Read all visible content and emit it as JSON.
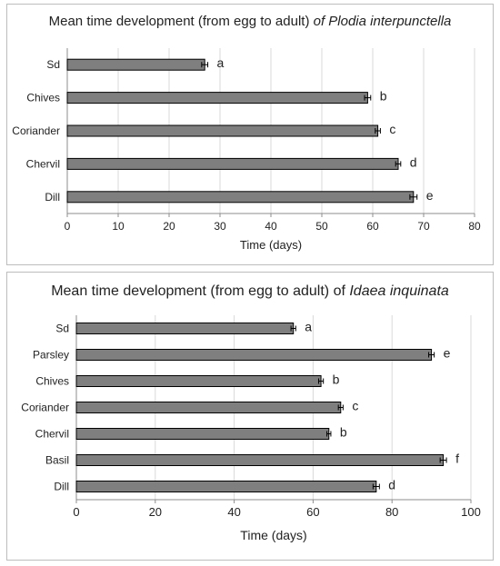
{
  "chart_data": [
    {
      "type": "bar",
      "orientation": "horizontal",
      "title_prefix": "Mean time development  (from egg to adult) ",
      "title_species": "of Plodia interpunctella",
      "categories": [
        "Sd",
        "Chives",
        "Coriander",
        "Chervil",
        "Dill"
      ],
      "values": [
        27,
        59,
        61,
        65,
        68
      ],
      "error": [
        0.6,
        0.6,
        0.5,
        0.5,
        0.7
      ],
      "letters": [
        "a",
        "b",
        "c",
        "d",
        "e"
      ],
      "xlabel": "Time (days)",
      "xlim": [
        0,
        80
      ],
      "xticks": [
        0,
        10,
        20,
        30,
        40,
        50,
        60,
        70,
        80
      ],
      "grid": "vertical",
      "bar_color": "#7f7f7f"
    },
    {
      "type": "bar",
      "orientation": "horizontal",
      "title_prefix": "Mean time development  (from egg to adult) of ",
      "title_species": "Idaea inquinata",
      "categories": [
        "Sd",
        "Parsley",
        "Chives",
        "Coriander",
        "Chervil",
        "Basil",
        "Dill"
      ],
      "values": [
        55,
        90,
        62,
        67,
        64,
        93,
        76
      ],
      "error": [
        0.6,
        0.7,
        0.6,
        0.6,
        0.5,
        0.8,
        0.8
      ],
      "letters": [
        "a",
        "e",
        "b",
        "c",
        "b",
        "f",
        "d"
      ],
      "xlabel": "Time (days)",
      "xlim": [
        0,
        100
      ],
      "xticks": [
        0,
        20,
        40,
        60,
        80,
        100
      ],
      "grid": "vertical",
      "bar_color": "#7f7f7f"
    }
  ]
}
